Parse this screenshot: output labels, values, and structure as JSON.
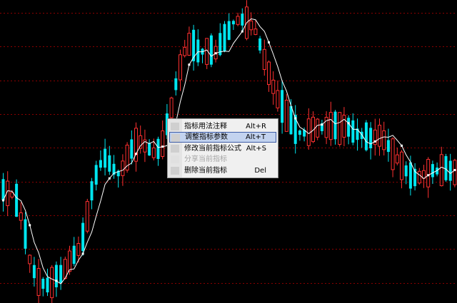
{
  "colors": {
    "background": "#000000",
    "grid": "#8b0000",
    "up": "#ff3030",
    "down": "#00e6f0",
    "moving_average": "#ffffff",
    "menu_bg": "#f0f0f0",
    "menu_highlight": "#c3d3ef",
    "menu_highlight_border": "#3e5da8",
    "menu_disabled_text": "#a6a6a6"
  },
  "context_menu": {
    "items": [
      {
        "label": "指标用法注释",
        "shortcut": "Alt+R",
        "enabled": true,
        "highlighted": false,
        "icon": "help-icon"
      },
      {
        "label": "调整指标参数",
        "shortcut": "Alt+T",
        "enabled": true,
        "highlighted": true,
        "icon": "settings-icon"
      },
      {
        "label": "修改当前指标公式",
        "shortcut": "Alt+S",
        "enabled": true,
        "highlighted": false,
        "icon": "edit-formula-icon"
      },
      {
        "label": "分享当前指标",
        "shortcut": "",
        "enabled": false,
        "highlighted": false,
        "icon": "share-icon"
      },
      {
        "label": "删除当前指标",
        "shortcut": "Del",
        "enabled": true,
        "highlighted": false,
        "icon": "delete-icon"
      }
    ]
  }
}
